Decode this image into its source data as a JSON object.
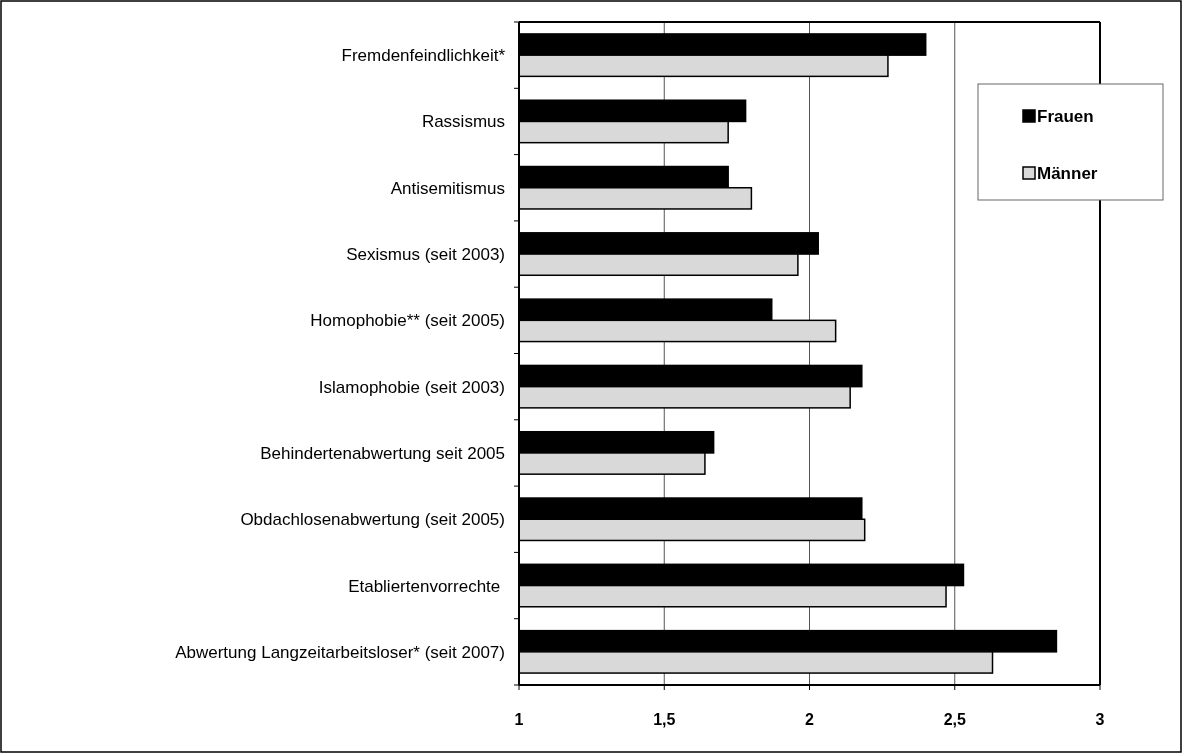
{
  "chart_data": {
    "type": "bar",
    "orientation": "horizontal",
    "categories": [
      "Fremdenfeindlichkeit*",
      "Rassismus",
      "Antisemitismus",
      "Sexismus (seit 2003)",
      "Homophobie** (seit 2005)",
      "Islamophobie (seit 2003)",
      "Behindertenabwertung seit 2005",
      "Obdachlosenabwertung (seit 2005)",
      "Etabliertenvorrechte ",
      "Abwertung Langzeitarbeitsloser* (seit 2007)"
    ],
    "series": [
      {
        "name": "Frauen",
        "color": "#000000",
        "values": [
          2.4,
          1.78,
          1.72,
          2.03,
          1.87,
          2.18,
          1.67,
          2.18,
          2.53,
          2.85
        ]
      },
      {
        "name": "Männer",
        "color": "#d9d9d9",
        "values": [
          2.27,
          1.72,
          1.8,
          1.96,
          2.09,
          2.14,
          1.64,
          2.19,
          2.47,
          2.63
        ]
      }
    ],
    "xlim": [
      1,
      3
    ],
    "xticks": [
      1,
      {
        "value": 1.5,
        "label": "1,5"
      },
      2,
      {
        "value": 2.5,
        "label": "2,5"
      },
      3
    ],
    "grid": "x",
    "legend": "top right"
  }
}
